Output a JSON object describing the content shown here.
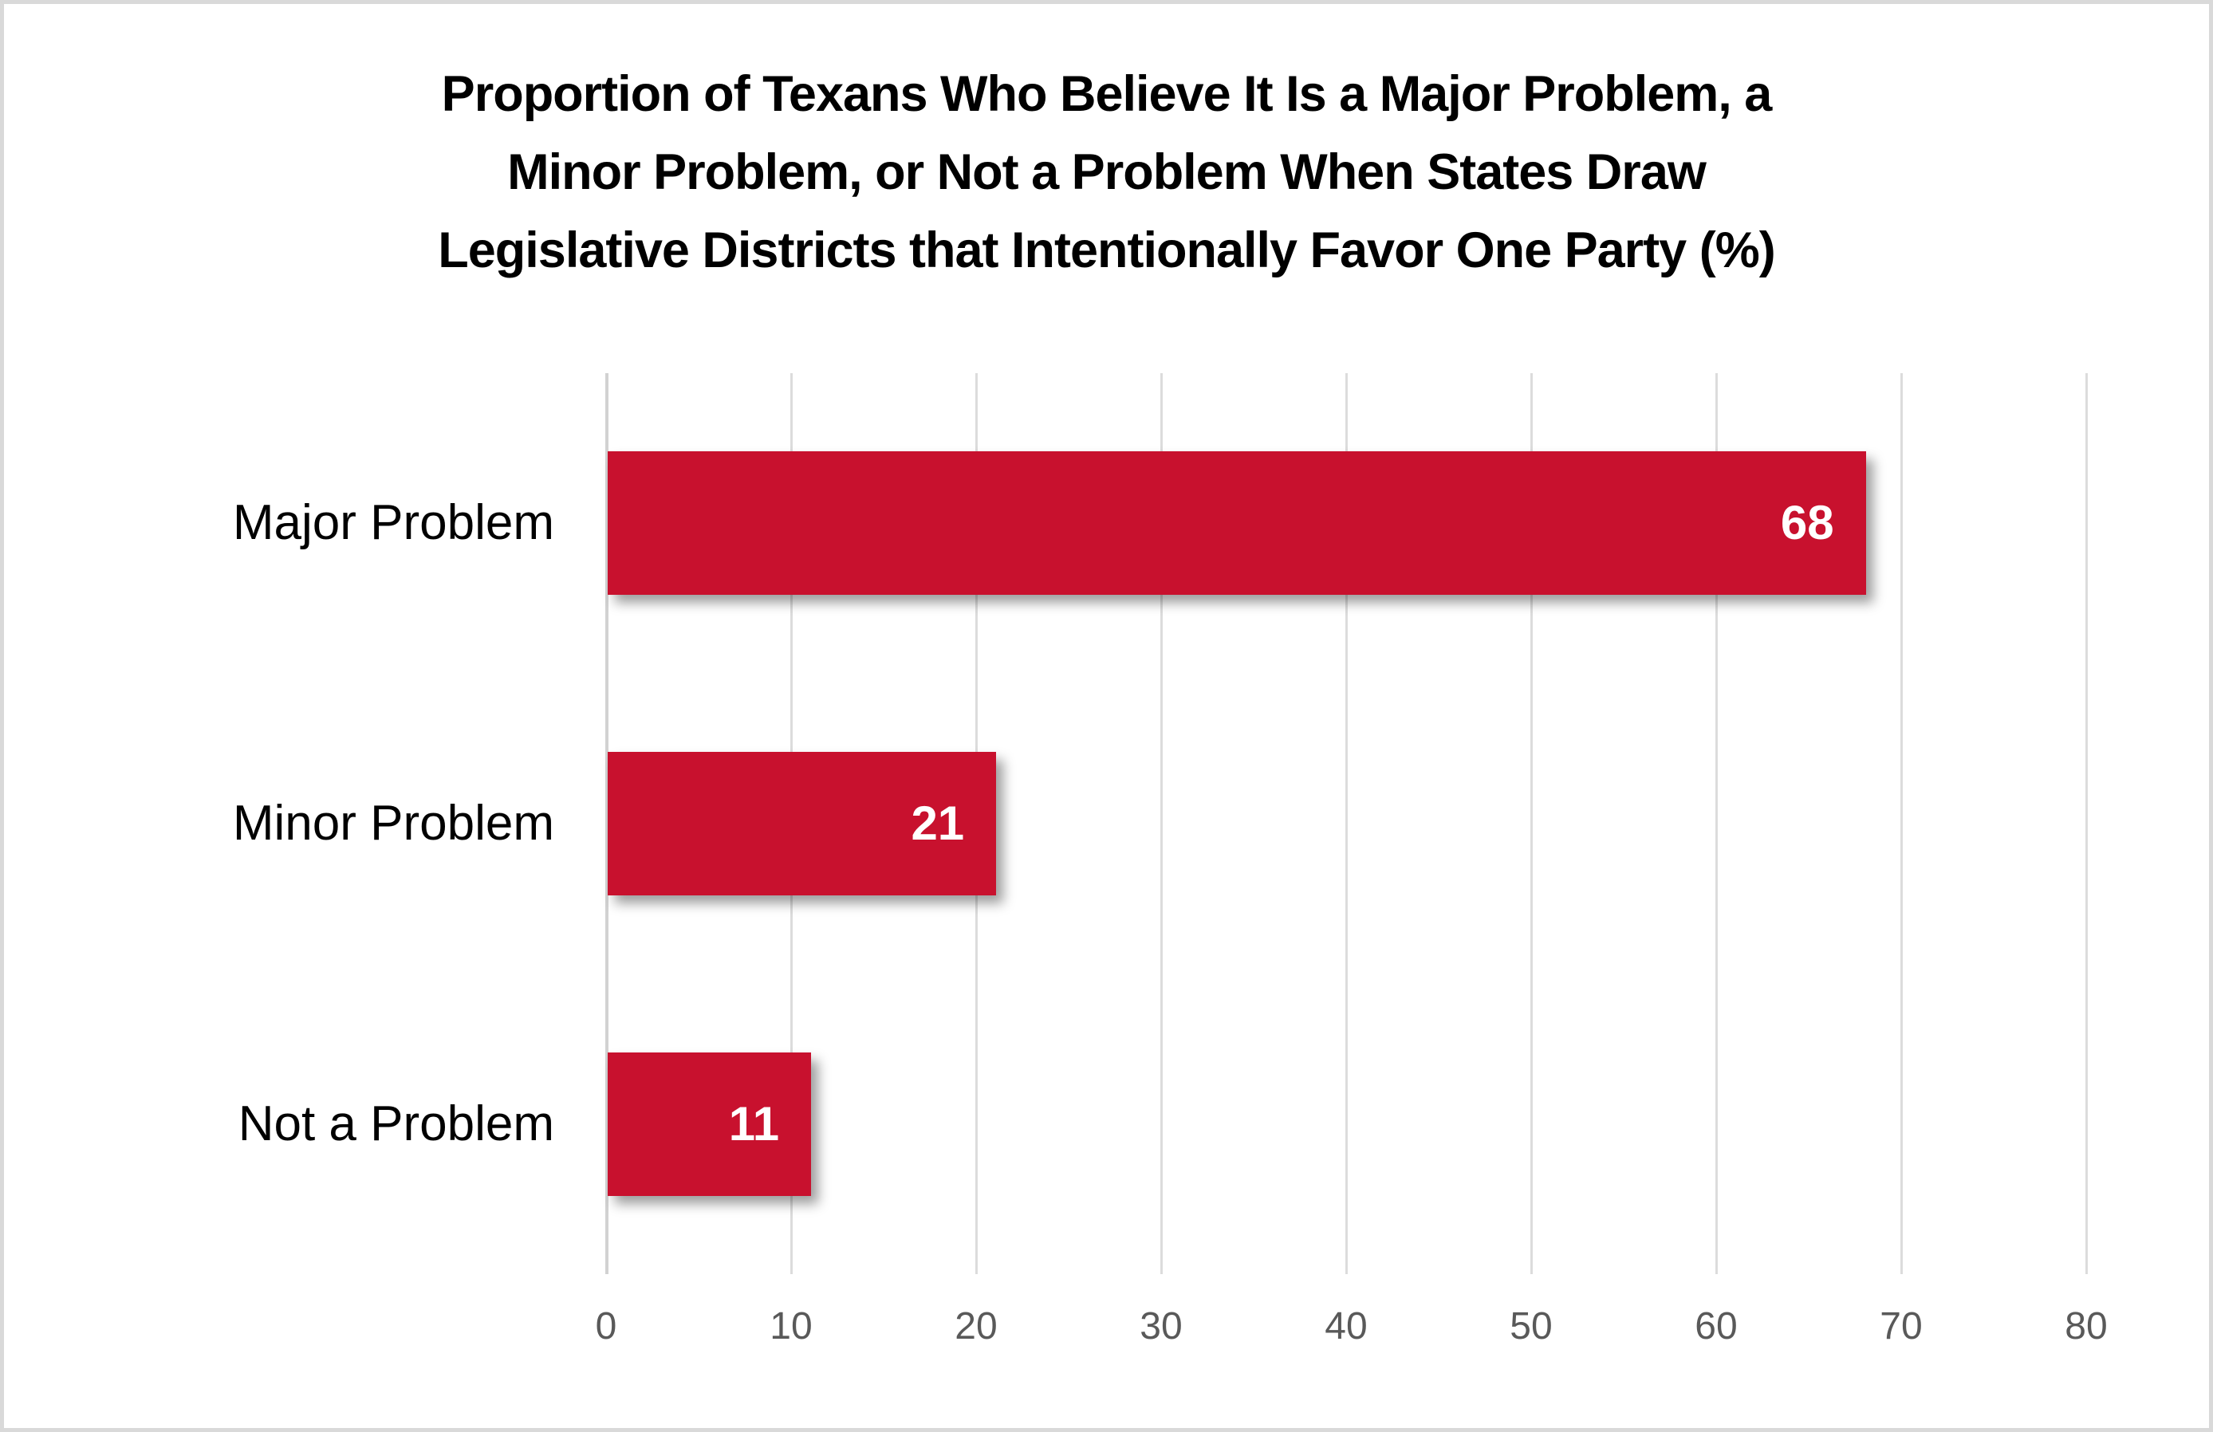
{
  "title": {
    "lines": [
      "Proportion of Texans Who Believe It Is a Major Problem, a",
      "Minor Problem, or Not a Problem When States Draw",
      "Legislative Districts that Intentionally Favor One Party (%)"
    ],
    "color": "#000000"
  },
  "chart_data": {
    "type": "bar",
    "orientation": "horizontal",
    "title": "Proportion of Texans Who Believe It Is a Major Problem, a Minor Problem, or Not a Problem When States Draw Legislative Districts that Intentionally Favor One Party (%)",
    "categories": [
      "Major Problem",
      "Minor Problem",
      "Not a Problem"
    ],
    "values": [
      68,
      21,
      11
    ],
    "xlabel": "",
    "ylabel": "",
    "xlim": [
      0,
      80
    ],
    "x_ticks": [
      0,
      10,
      20,
      30,
      40,
      50,
      60,
      70,
      80
    ],
    "grid": true,
    "legend": false,
    "bar_color": "#C8112E",
    "value_label_color": "#FFFFFF",
    "category_label_color": "#000000",
    "tick_label_color": "#595959",
    "gridline_color": "#DCDCDC",
    "background_color": "#FFFFFF",
    "frame_border_color": "#D9D9D9"
  }
}
